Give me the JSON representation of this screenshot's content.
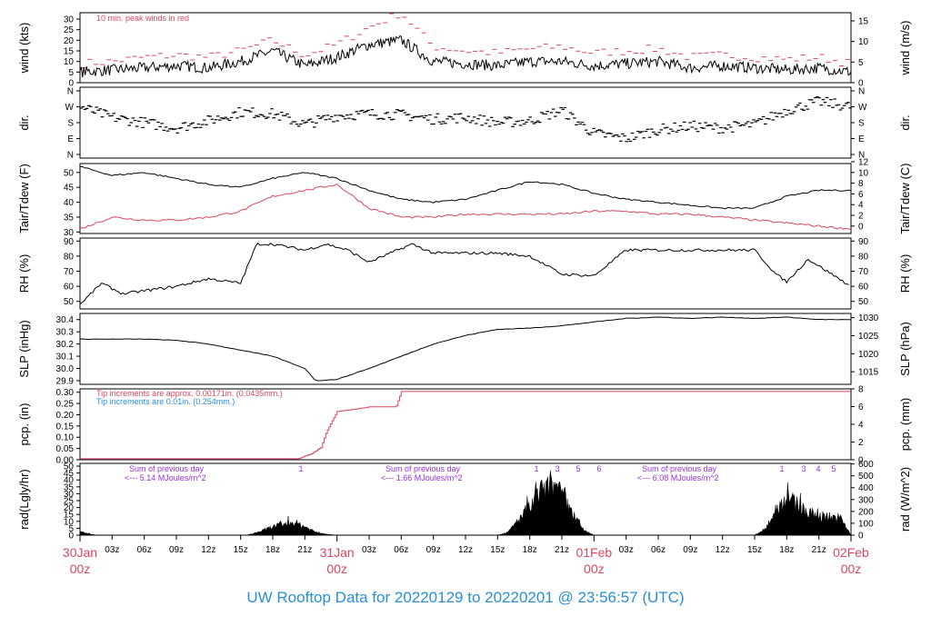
{
  "colors": {
    "red": "#d9485f",
    "blue": "#2a8fd6",
    "purple": "#9b30d9",
    "black": "#000000"
  },
  "footer": {
    "title": "UW Rooftop Data for 20220129  to  20220201 @ 23:56:57  (UTC)"
  },
  "chart_data": [
    {
      "type": "line",
      "panel": "wind",
      "ylabel_left": "wind (kts)",
      "ylabel_right": "wind (m/s)",
      "ylim": [
        0,
        33
      ],
      "ticks_left": [
        0,
        5,
        10,
        15,
        20,
        25,
        30
      ],
      "ticks_right": [
        0,
        5,
        10,
        15
      ],
      "annotations": [
        "10 min. peak winds in red"
      ],
      "series": [
        {
          "key": "speed",
          "color": "#000000",
          "x": [
            0,
            3,
            6,
            9,
            12,
            15,
            18,
            21,
            24,
            27,
            30,
            33,
            36,
            39,
            42,
            45,
            48,
            51,
            54,
            57,
            60,
            63,
            66,
            69,
            72
          ],
          "values": [
            5,
            6,
            7,
            8,
            7,
            10,
            15,
            8,
            12,
            18,
            20,
            10,
            9,
            8,
            10,
            10,
            8,
            9,
            10,
            7,
            8,
            7,
            6,
            7,
            5
          ]
        },
        {
          "key": "peak_10min",
          "color": "#d9485f",
          "x": [
            0,
            3,
            6,
            9,
            12,
            15,
            18,
            21,
            24,
            27,
            30,
            33,
            36,
            39,
            42,
            45,
            48,
            51,
            54,
            57,
            60,
            63,
            66,
            69,
            72
          ],
          "values": [
            9,
            10,
            12,
            13,
            12,
            15,
            20,
            13,
            18,
            26,
            33,
            17,
            15,
            14,
            16,
            17,
            14,
            15,
            16,
            12,
            13,
            12,
            11,
            12,
            9
          ]
        }
      ]
    },
    {
      "type": "scatter",
      "panel": "dir",
      "ylabel_left": "dir.",
      "ylabel_right": "dir.",
      "ticks_left": [
        "N",
        "E",
        "S",
        "W",
        "N"
      ],
      "ticks_right": [
        "N",
        "E",
        "S",
        "W",
        "N"
      ],
      "series": [
        {
          "key": "direction_deg",
          "color": "#000000",
          "x": [
            0,
            3,
            6,
            9,
            12,
            15,
            18,
            21,
            24,
            27,
            30,
            33,
            36,
            39,
            42,
            45,
            48,
            51,
            54,
            57,
            60,
            63,
            66,
            69,
            72
          ],
          "values": [
            270,
            210,
            180,
            150,
            190,
            240,
            230,
            170,
            220,
            230,
            225,
            200,
            210,
            180,
            190,
            250,
            120,
            90,
            140,
            160,
            150,
            170,
            250,
            300,
            270
          ]
        }
      ]
    },
    {
      "type": "line",
      "panel": "temperature",
      "ylabel_left": "Tair/Tdew (F)",
      "ylabel_right": "Tair/Tdew (C)",
      "ylim": [
        29.5,
        53
      ],
      "ticks_left": [
        30,
        35,
        40,
        45,
        50
      ],
      "ticks_right": [
        0,
        2,
        4,
        6,
        8,
        10,
        12
      ],
      "series": [
        {
          "key": "air_temp",
          "color": "#000000",
          "x": [
            0,
            3,
            6,
            9,
            12,
            15,
            18,
            21,
            24,
            27,
            30,
            33,
            36,
            39,
            42,
            45,
            48,
            51,
            54,
            57,
            60,
            63,
            66,
            69,
            72
          ],
          "values": [
            52,
            49,
            50,
            48,
            46,
            45,
            48,
            50,
            48,
            44,
            41,
            40,
            41,
            44,
            47,
            46,
            43,
            41,
            40,
            39,
            38,
            38,
            42,
            44,
            44
          ]
        },
        {
          "key": "dew_point",
          "color": "#d9485f",
          "x": [
            0,
            3,
            6,
            9,
            12,
            15,
            18,
            21,
            24,
            27,
            30,
            33,
            36,
            39,
            42,
            45,
            48,
            51,
            54,
            57,
            60,
            63,
            66,
            69,
            72
          ],
          "values": [
            31,
            35,
            34,
            34,
            35,
            37,
            42,
            44,
            46,
            38,
            35,
            35,
            36,
            36,
            36,
            36,
            37,
            37,
            36,
            36,
            35,
            34,
            33,
            32,
            31
          ]
        }
      ]
    },
    {
      "type": "line",
      "panel": "rh",
      "ylabel_left": "RH (%)",
      "ylabel_right": "RH (%)",
      "ylim": [
        45,
        92
      ],
      "ticks_left": [
        50,
        60,
        70,
        80,
        90
      ],
      "ticks_right": [
        50,
        60,
        70,
        80,
        90
      ],
      "series": [
        {
          "key": "relative_humidity",
          "color": "#000000",
          "x": [
            0,
            2,
            4,
            6,
            9,
            12,
            15,
            16.5,
            18,
            21,
            23,
            25,
            27,
            29,
            31,
            33,
            36,
            39,
            42,
            45,
            48,
            51,
            54,
            57,
            60,
            63,
            65,
            66,
            68,
            72
          ],
          "values": [
            48,
            62,
            55,
            57,
            60,
            65,
            62,
            88,
            88,
            84,
            88,
            84,
            76,
            82,
            88,
            82,
            82,
            82,
            80,
            68,
            67,
            84,
            84,
            84,
            84,
            84,
            68,
            63,
            78,
            60
          ]
        }
      ]
    },
    {
      "type": "line",
      "panel": "slp",
      "ylabel_left": "SLP (inHg)",
      "ylabel_right": "SLP (hPa)",
      "ylim": [
        29.87,
        30.45
      ],
      "ticks_left": [
        "29.9",
        "30.0",
        "30.1",
        "30.2",
        "30.3",
        "30.4"
      ],
      "ticks_right": [
        "1015",
        "1020",
        "1025",
        "1030"
      ],
      "series": [
        {
          "key": "sea_level_pressure",
          "color": "#000000",
          "x": [
            0,
            3,
            6,
            9,
            12,
            15,
            18,
            21,
            22,
            24,
            27,
            30,
            33,
            36,
            39,
            42,
            45,
            48,
            51,
            54,
            57,
            60,
            63,
            66,
            69,
            72
          ],
          "values": [
            30.24,
            30.24,
            30.24,
            30.23,
            30.2,
            30.15,
            30.1,
            30.0,
            29.9,
            29.91,
            30.0,
            30.1,
            30.2,
            30.27,
            30.32,
            30.33,
            30.35,
            30.38,
            30.41,
            30.42,
            30.41,
            30.42,
            30.41,
            30.42,
            30.4,
            30.4
          ]
        }
      ]
    },
    {
      "type": "line",
      "panel": "precip",
      "ylabel_left": "pcp. (in)",
      "ylabel_right": "pcp. (mm)",
      "ylim": [
        0,
        0.315
      ],
      "ticks_left": [
        "0.00",
        "0.05",
        "0.10",
        "0.15",
        "0.20",
        "0.25",
        "0.30"
      ],
      "ticks_right": [
        "0",
        "2",
        "4",
        "6",
        "8"
      ],
      "annotations": [
        {
          "text": "Tip increments are approx. 0.00171in. (0.0435mm.)",
          "color": "#d9485f"
        },
        {
          "text": "Tip increments are 0.01in. (0.254mm.)",
          "color": "#2a8fd6"
        }
      ],
      "series": [
        {
          "key": "accumulated_precip",
          "color": "#d9485f",
          "x": [
            0,
            20.3,
            21.5,
            22.5,
            23,
            24,
            27,
            29.5,
            30,
            72
          ],
          "values": [
            0,
            0,
            0.02,
            0.05,
            0.12,
            0.21,
            0.23,
            0.23,
            0.3,
            0.3
          ]
        },
        {
          "key": "accumulated_precip_baseline",
          "color": "#9b30d9",
          "x": [
            0,
            20.3
          ],
          "values": [
            0,
            0
          ]
        }
      ]
    },
    {
      "type": "area",
      "panel": "radiation",
      "ylabel_left": "rad(Lgly/hr)",
      "ylabel_right": "rad (W/m^2)",
      "ylim": [
        0,
        52
      ],
      "ticks_left": [
        0,
        5,
        10,
        15,
        20,
        25,
        30,
        35,
        40,
        45,
        50
      ],
      "ticks_right": [
        0,
        100,
        200,
        300,
        400,
        500,
        600
      ],
      "annotations": [
        {
          "text": "Sum of previous day",
          "color": "#9b30d9"
        },
        {
          "text": "<--- 5.14 MJoules/m^2",
          "color": "#9b30d9"
        },
        {
          "text": "Sum of previous day",
          "color": "#9b30d9"
        },
        {
          "text": "<--- 1.66 MJoules/m^2",
          "color": "#9b30d9"
        },
        {
          "text": "Sum of previous day",
          "color": "#9b30d9"
        },
        {
          "text": "<--- 6.08 MJoules/m^2",
          "color": "#9b30d9"
        }
      ],
      "hour_marks": [
        "1",
        "1",
        "3",
        "5",
        "6",
        "1",
        "3",
        "4",
        "5"
      ],
      "series": [
        {
          "key": "solar_radiation",
          "color": "#000000",
          "x": [
            0,
            0.5,
            1,
            1.5,
            15.5,
            16,
            17,
            18,
            19,
            20,
            21,
            22,
            23,
            24,
            39,
            40,
            41,
            42,
            43,
            44,
            45,
            46,
            47,
            48,
            63,
            64,
            65,
            66,
            67,
            68,
            69,
            70,
            71,
            72
          ],
          "values": [
            3,
            2,
            1,
            0,
            0,
            1,
            4,
            8,
            10,
            12,
            8,
            3,
            1,
            0,
            0,
            3,
            15,
            25,
            40,
            45,
            38,
            20,
            5,
            0,
            0,
            5,
            25,
            35,
            28,
            20,
            18,
            17,
            16,
            0
          ]
        }
      ]
    }
  ],
  "time_axis": {
    "ticks": [
      "03z",
      "06z",
      "09z",
      "12z",
      "15z",
      "18z",
      "21z",
      "03z",
      "06z",
      "09z",
      "12z",
      "15z",
      "18z",
      "21z",
      "03z",
      "06z",
      "09z",
      "12z",
      "15z",
      "18z",
      "21z"
    ],
    "day_labels": [
      {
        "day": "30Jan",
        "hour": "00z"
      },
      {
        "day": "31Jan",
        "hour": "00z"
      },
      {
        "day": "01Feb",
        "hour": "00z"
      },
      {
        "day": "02Feb",
        "hour": "00z"
      }
    ]
  }
}
